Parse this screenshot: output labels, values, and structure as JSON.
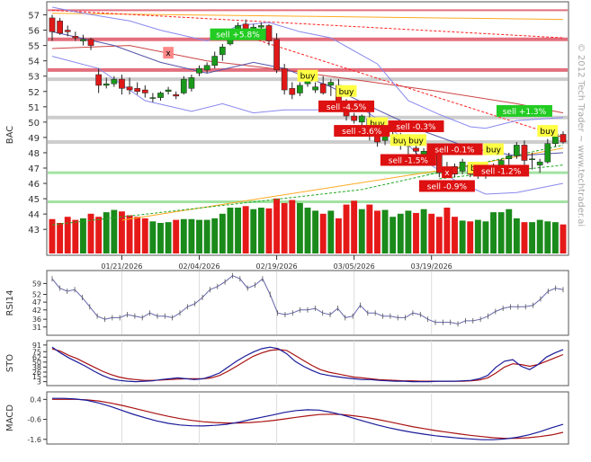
{
  "chart_data": {
    "type": "candlestick",
    "symbol": "BAC",
    "watermark": "© 2012 Tech Trader ~ www.techtrader.ai",
    "x_ticks": [
      "01/21/2026",
      "02/04/2026",
      "02/19/2026",
      "03/05/2026",
      "03/19/2026"
    ],
    "price_axis": {
      "ticks": [
        43,
        44,
        45,
        46,
        47,
        48,
        49,
        50,
        51,
        52,
        53,
        54,
        55,
        56,
        57
      ],
      "ylim": [
        42.6,
        57.5
      ]
    },
    "candles": [
      {
        "o": 56.8,
        "h": 57.0,
        "l": 55.3,
        "c": 55.9
      },
      {
        "o": 56.6,
        "h": 56.8,
        "l": 55.7,
        "c": 55.8
      },
      {
        "o": 56.0,
        "h": 56.3,
        "l": 55.6,
        "c": 55.9
      },
      {
        "o": 55.6,
        "h": 55.9,
        "l": 55.3,
        "c": 55.5
      },
      {
        "o": 55.3,
        "h": 55.7,
        "l": 55.0,
        "c": 55.4
      },
      {
        "o": 55.4,
        "h": 55.5,
        "l": 54.7,
        "c": 55.0
      },
      {
        "o": 53.1,
        "h": 53.5,
        "l": 51.9,
        "c": 52.4
      },
      {
        "o": 52.4,
        "h": 52.9,
        "l": 52.2,
        "c": 52.5
      },
      {
        "o": 52.5,
        "h": 53.0,
        "l": 52.3,
        "c": 52.8
      },
      {
        "o": 52.8,
        "h": 53.1,
        "l": 51.8,
        "c": 52.2
      },
      {
        "o": 52.3,
        "h": 52.9,
        "l": 51.8,
        "c": 52.1
      },
      {
        "o": 52.2,
        "h": 52.6,
        "l": 51.8,
        "c": 52.0
      },
      {
        "o": 52.1,
        "h": 52.4,
        "l": 51.6,
        "c": 51.9
      },
      {
        "o": 51.6,
        "h": 51.9,
        "l": 51.3,
        "c": 51.6
      },
      {
        "o": 51.6,
        "h": 52.0,
        "l": 51.4,
        "c": 51.9
      },
      {
        "o": 52.0,
        "h": 52.3,
        "l": 51.8,
        "c": 52.1
      },
      {
        "o": 51.8,
        "h": 52.0,
        "l": 51.5,
        "c": 51.7
      },
      {
        "o": 51.9,
        "h": 53.0,
        "l": 51.8,
        "c": 52.8
      },
      {
        "o": 52.2,
        "h": 53.1,
        "l": 52.0,
        "c": 52.9
      },
      {
        "o": 53.2,
        "h": 53.7,
        "l": 53.0,
        "c": 53.5
      },
      {
        "o": 53.4,
        "h": 53.9,
        "l": 53.2,
        "c": 53.7
      },
      {
        "o": 53.7,
        "h": 54.6,
        "l": 53.5,
        "c": 54.3
      },
      {
        "o": 54.4,
        "h": 55.1,
        "l": 54.0,
        "c": 54.9
      },
      {
        "o": 55.1,
        "h": 56.0,
        "l": 55.0,
        "c": 55.8
      },
      {
        "o": 55.9,
        "h": 56.5,
        "l": 55.6,
        "c": 56.3
      },
      {
        "o": 56.4,
        "h": 56.7,
        "l": 55.9,
        "c": 56.1
      },
      {
        "o": 56.0,
        "h": 56.4,
        "l": 55.8,
        "c": 56.2
      },
      {
        "o": 56.2,
        "h": 56.5,
        "l": 55.9,
        "c": 56.3
      },
      {
        "o": 56.3,
        "h": 56.4,
        "l": 55.0,
        "c": 55.3
      },
      {
        "o": 55.4,
        "h": 55.8,
        "l": 53.2,
        "c": 53.4
      },
      {
        "o": 53.5,
        "h": 53.8,
        "l": 51.8,
        "c": 52.1
      },
      {
        "o": 52.2,
        "h": 52.6,
        "l": 51.5,
        "c": 51.8
      },
      {
        "o": 51.9,
        "h": 52.6,
        "l": 51.7,
        "c": 52.4
      },
      {
        "o": 52.5,
        "h": 52.9,
        "l": 52.3,
        "c": 52.8
      },
      {
        "o": 52.1,
        "h": 52.6,
        "l": 51.9,
        "c": 52.3
      },
      {
        "o": 52.5,
        "h": 53.0,
        "l": 51.8,
        "c": 51.9
      },
      {
        "o": 52.4,
        "h": 52.8,
        "l": 51.7,
        "c": 52.6
      },
      {
        "o": 52.4,
        "h": 52.8,
        "l": 51.0,
        "c": 51.2
      },
      {
        "o": 51.3,
        "h": 51.5,
        "l": 50.1,
        "c": 50.4
      },
      {
        "o": 50.4,
        "h": 50.6,
        "l": 49.9,
        "c": 50.1
      },
      {
        "o": 50.0,
        "h": 50.5,
        "l": 49.5,
        "c": 50.4
      },
      {
        "o": 50.2,
        "h": 50.8,
        "l": 48.8,
        "c": 49.1
      },
      {
        "o": 49.2,
        "h": 49.6,
        "l": 48.4,
        "c": 48.7
      },
      {
        "o": 48.8,
        "h": 49.6,
        "l": 48.5,
        "c": 49.4
      },
      {
        "o": 49.4,
        "h": 49.8,
        "l": 48.8,
        "c": 49.6
      },
      {
        "o": 48.6,
        "h": 49.3,
        "l": 48.2,
        "c": 48.6
      },
      {
        "o": 48.5,
        "h": 48.8,
        "l": 47.7,
        "c": 48.5
      },
      {
        "o": 48.3,
        "h": 48.7,
        "l": 47.4,
        "c": 48.1
      },
      {
        "o": 47.9,
        "h": 48.3,
        "l": 47.8,
        "c": 48.1
      },
      {
        "o": 48.1,
        "h": 48.3,
        "l": 47.8,
        "c": 48.0
      },
      {
        "o": 47.9,
        "h": 48.0,
        "l": 46.4,
        "c": 46.7
      },
      {
        "o": 47.0,
        "h": 47.4,
        "l": 46.5,
        "c": 46.9
      },
      {
        "o": 47.1,
        "h": 47.3,
        "l": 46.4,
        "c": 46.6
      },
      {
        "o": 46.8,
        "h": 47.6,
        "l": 46.6,
        "c": 47.4
      },
      {
        "o": 47.2,
        "h": 47.3,
        "l": 46.4,
        "c": 46.6
      },
      {
        "o": 46.5,
        "h": 46.9,
        "l": 46.3,
        "c": 46.7
      },
      {
        "o": 46.6,
        "h": 47.2,
        "l": 46.3,
        "c": 47.0
      },
      {
        "o": 46.9,
        "h": 47.3,
        "l": 46.5,
        "c": 47.0
      },
      {
        "o": 47.1,
        "h": 47.6,
        "l": 46.7,
        "c": 47.5
      },
      {
        "o": 47.6,
        "h": 48.0,
        "l": 47.2,
        "c": 47.8
      },
      {
        "o": 47.8,
        "h": 48.7,
        "l": 47.6,
        "c": 48.5
      },
      {
        "o": 48.5,
        "h": 48.8,
        "l": 47.2,
        "c": 47.5
      },
      {
        "o": 47.6,
        "h": 48.0,
        "l": 46.9,
        "c": 47.6
      },
      {
        "o": 47.2,
        "h": 47.6,
        "l": 46.7,
        "c": 47.4
      },
      {
        "o": 47.4,
        "h": 48.9,
        "l": 47.3,
        "c": 48.6
      },
      {
        "o": 48.6,
        "h": 49.5,
        "l": 48.4,
        "c": 49.2
      },
      {
        "o": 49.2,
        "h": 49.4,
        "l": 48.6,
        "c": 48.7
      }
    ],
    "volume": [
      45,
      40,
      48,
      44,
      46,
      52,
      48,
      54,
      57,
      55,
      50,
      48,
      46,
      42,
      40,
      41,
      44,
      45,
      45,
      44,
      44,
      46,
      52,
      60,
      60,
      62,
      58,
      60,
      59,
      72,
      66,
      70,
      66,
      60,
      56,
      52,
      56,
      46,
      64,
      69,
      58,
      64,
      56,
      57,
      48,
      52,
      56,
      53,
      58,
      52,
      48,
      60,
      48,
      43,
      42,
      44,
      42,
      54,
      54,
      58,
      46,
      41,
      41,
      44,
      42,
      41,
      38
    ],
    "reference_lines": [
      {
        "y": 57.3,
        "color": "#e06070",
        "width": 2
      },
      {
        "y": 55.4,
        "color": "#e06070",
        "width": 4
      },
      {
        "y": 53.4,
        "color": "#e06070",
        "width": 4
      },
      {
        "y": 52.8,
        "color": "#c8c8c8",
        "width": 4
      },
      {
        "y": 50.3,
        "color": "#c8c8c8",
        "width": 4
      },
      {
        "y": 48.7,
        "color": "#c8c8c8",
        "width": 4
      },
      {
        "y": 46.7,
        "color": "#98e098",
        "width": 3
      },
      {
        "y": 44.8,
        "color": "#98e098",
        "width": 3
      }
    ],
    "overlay_lines": [
      {
        "name": "",
        "color": "#ffaa22",
        "dash": "",
        "points": [
          [
            0,
            57.1
          ],
          [
            66,
            56.7
          ]
        ]
      },
      {
        "name": "",
        "color": "#ff2020",
        "dash": "3,2",
        "points": [
          [
            0,
            57.3
          ],
          [
            66,
            55.5
          ]
        ]
      },
      {
        "name": "",
        "color": "#ff2020",
        "dash": "3,2",
        "points": [
          [
            25,
            55.6
          ],
          [
            66,
            49.0
          ]
        ]
      },
      {
        "name": "",
        "color": "#ffaa22",
        "dash": "",
        "points": [
          [
            9,
            43.6
          ],
          [
            52,
            47.0
          ],
          [
            66,
            48.3
          ]
        ]
      },
      {
        "name": "",
        "color": "#20aa20",
        "dash": "3,2",
        "points": [
          [
            0,
            43.3
          ],
          [
            40,
            45.6
          ],
          [
            66,
            48.5
          ]
        ]
      },
      {
        "name": "",
        "color": "#20aa20",
        "dash": "3,2",
        "points": [
          [
            50,
            46.3
          ],
          [
            66,
            47.2
          ]
        ]
      },
      {
        "name": "",
        "color": "#cc4444",
        "dash": "",
        "points": [
          [
            0,
            54.8
          ],
          [
            10,
            55.0
          ],
          [
            20,
            54.0
          ],
          [
            30,
            53.4
          ],
          [
            40,
            52.7
          ],
          [
            50,
            52.0
          ],
          [
            60,
            51.2
          ],
          [
            66,
            50.6
          ]
        ]
      },
      {
        "name": "",
        "color": "#5555aa",
        "dash": "",
        "points": [
          [
            0,
            55.9
          ],
          [
            8,
            55.0
          ],
          [
            14,
            53.9
          ],
          [
            20,
            53.2
          ],
          [
            26,
            53.9
          ],
          [
            30,
            53.5
          ],
          [
            36,
            52.3
          ],
          [
            42,
            50.8
          ],
          [
            48,
            49.4
          ],
          [
            54,
            48.3
          ],
          [
            60,
            47.8
          ],
          [
            66,
            48.0
          ]
        ]
      },
      {
        "name": "",
        "color": "#8888ee",
        "dash": "",
        "points": [
          [
            0,
            57.5
          ],
          [
            4,
            57.1
          ],
          [
            10,
            56.6
          ],
          [
            14,
            56.0
          ],
          [
            20,
            55.3
          ],
          [
            24,
            56.3
          ],
          [
            28,
            56.5
          ],
          [
            32,
            55.9
          ],
          [
            36,
            55.5
          ],
          [
            42,
            53.8
          ],
          [
            46,
            51.4
          ],
          [
            50,
            50.5
          ],
          [
            54,
            49.7
          ],
          [
            56,
            49.6
          ],
          [
            60,
            50.1
          ],
          [
            66,
            50.3
          ]
        ]
      },
      {
        "name": "",
        "color": "#8888ee",
        "dash": "",
        "points": [
          [
            0,
            54.3
          ],
          [
            6,
            53.5
          ],
          [
            12,
            51.4
          ],
          [
            18,
            50.7
          ],
          [
            22,
            51.2
          ],
          [
            26,
            50.6
          ],
          [
            30,
            50.8
          ],
          [
            34,
            50.8
          ],
          [
            40,
            50.9
          ],
          [
            44,
            49.5
          ],
          [
            48,
            47.5
          ],
          [
            52,
            46.2
          ],
          [
            56,
            45.3
          ],
          [
            60,
            45.4
          ],
          [
            66,
            46.0
          ]
        ]
      }
    ],
    "annotations": [
      {
        "text": "sell +5.8%",
        "i": 24,
        "y": 55.7,
        "bg": "#22cc22",
        "fg": "#ffffff"
      },
      {
        "text": "buy",
        "i": 33,
        "y": 53.0,
        "bg": "#ffff44",
        "fg": "#000000"
      },
      {
        "text": "buy",
        "i": 38,
        "y": 52.0,
        "bg": "#ffff44",
        "fg": "#000000"
      },
      {
        "text": "sell -4.5%",
        "i": 38,
        "y": 51.0,
        "bg": "#dd1111",
        "fg": "#ffffff"
      },
      {
        "text": "buy",
        "i": 42,
        "y": 49.9,
        "bg": "#ffff44",
        "fg": "#000000"
      },
      {
        "text": "sell -3.6%",
        "i": 40,
        "y": 49.4,
        "bg": "#dd1111",
        "fg": "#ffffff"
      },
      {
        "text": "sell -0.3%",
        "i": 47,
        "y": 49.7,
        "bg": "#dd1111",
        "fg": "#ffffff"
      },
      {
        "text": "buy",
        "i": 45,
        "y": 48.8,
        "bg": "#ffff44",
        "fg": "#000000"
      },
      {
        "text": "buy",
        "i": 47,
        "y": 48.8,
        "bg": "#ffff44",
        "fg": "#000000"
      },
      {
        "text": "sell -1.5%",
        "i": 46,
        "y": 47.5,
        "bg": "#dd1111",
        "fg": "#ffffff"
      },
      {
        "text": "sell -0.1%",
        "i": 52,
        "y": 48.2,
        "bg": "#dd1111",
        "fg": "#ffffff"
      },
      {
        "text": "buy",
        "i": 55,
        "y": 47.0,
        "bg": "#ffff44",
        "fg": "#000000"
      },
      {
        "text": "buy",
        "i": 57,
        "y": 48.2,
        "bg": "#ffff44",
        "fg": "#000000"
      },
      {
        "text": "sell -1.2%",
        "i": 58,
        "y": 46.8,
        "bg": "#dd1111",
        "fg": "#ffffff"
      },
      {
        "text": "sell -0.9%",
        "i": 51,
        "y": 45.8,
        "bg": "#dd1111",
        "fg": "#ffffff"
      },
      {
        "text": "sell +1.3%",
        "i": 61,
        "y": 50.7,
        "bg": "#22cc22",
        "fg": "#ffffff"
      },
      {
        "text": "buy",
        "i": 64,
        "y": 49.4,
        "bg": "#ffff44",
        "fg": "#000000"
      },
      {
        "text": "x",
        "i": 15,
        "y": 54.5,
        "bg": "#ff8888",
        "fg": "#000000"
      },
      {
        "text": "x",
        "i": 51,
        "y": 46.7,
        "bg": "#dd1111",
        "fg": "#ffffff"
      }
    ],
    "rsi": {
      "label": "RSI14",
      "ticks": [
        31,
        36,
        42,
        47,
        52,
        59
      ],
      "ylim": [
        28,
        65
      ],
      "values": [
        62,
        56,
        54,
        55,
        50,
        44,
        38,
        36,
        37,
        37,
        39,
        38,
        37,
        40,
        38,
        38,
        37,
        40,
        44,
        46,
        50,
        55,
        57,
        60,
        64,
        62,
        56,
        58,
        62,
        52,
        40,
        39,
        40,
        42,
        42,
        43,
        40,
        39,
        43,
        37,
        38,
        45,
        40,
        40,
        38,
        38,
        37,
        37,
        40,
        39,
        36,
        34,
        34,
        34,
        33,
        35,
        35,
        36,
        38,
        41,
        43,
        44,
        44,
        44,
        45,
        49,
        54,
        56,
        55
      ]
    },
    "sto": {
      "label": "STO",
      "ticks": [
        3,
        15,
        26,
        38,
        50,
        62,
        75,
        91
      ],
      "ylim": [
        0,
        95
      ],
      "k": [
        86,
        72,
        60,
        50,
        40,
        28,
        18,
        10,
        6,
        4,
        3,
        4,
        5,
        8,
        10,
        12,
        10,
        8,
        10,
        16,
        24,
        38,
        52,
        64,
        74,
        82,
        86,
        82,
        70,
        52,
        40,
        30,
        22,
        18,
        15,
        12,
        10,
        8,
        8,
        6,
        5,
        4,
        4,
        3,
        3,
        3,
        4,
        4,
        4,
        5,
        6,
        10,
        18,
        38,
        52,
        56,
        40,
        32,
        44,
        62,
        72,
        80
      ],
      "d": [
        82,
        76,
        66,
        58,
        48,
        38,
        28,
        20,
        14,
        10,
        8,
        6,
        6,
        7,
        8,
        9,
        10,
        10,
        10,
        12,
        18,
        28,
        40,
        52,
        64,
        72,
        78,
        80,
        78,
        66,
        54,
        42,
        32,
        26,
        22,
        18,
        14,
        12,
        10,
        8,
        7,
        6,
        5,
        5,
        4,
        4,
        4,
        4,
        4,
        4,
        5,
        7,
        12,
        24,
        38,
        46,
        44,
        40,
        44,
        52,
        60,
        68
      ]
    },
    "macd": {
      "label": "MACD",
      "ticks": [
        0.4,
        -0.6,
        -1.6
      ],
      "ylim": [
        -1.7,
        0.55
      ],
      "macd": [
        0.45,
        0.45,
        0.42,
        0.35,
        0.22,
        0.05,
        -0.15,
        -0.35,
        -0.52,
        -0.68,
        -0.8,
        -0.88,
        -0.92,
        -0.93,
        -0.9,
        -0.85,
        -0.75,
        -0.62,
        -0.5,
        -0.38,
        -0.25,
        -0.16,
        -0.12,
        -0.14,
        -0.24,
        -0.38,
        -0.55,
        -0.72,
        -0.88,
        -1.02,
        -1.14,
        -1.25,
        -1.34,
        -1.42,
        -1.48,
        -1.54,
        -1.58,
        -1.62,
        -1.62,
        -1.58,
        -1.5,
        -1.38,
        -1.22,
        -1.02,
        -0.85
      ],
      "signal": [
        0.4,
        0.4,
        0.4,
        0.38,
        0.32,
        0.22,
        0.1,
        -0.04,
        -0.18,
        -0.32,
        -0.45,
        -0.56,
        -0.65,
        -0.72,
        -0.76,
        -0.78,
        -0.78,
        -0.76,
        -0.72,
        -0.66,
        -0.58,
        -0.5,
        -0.42,
        -0.36,
        -0.34,
        -0.36,
        -0.42,
        -0.5,
        -0.6,
        -0.72,
        -0.84,
        -0.96,
        -1.06,
        -1.16,
        -1.24,
        -1.32,
        -1.4,
        -1.46,
        -1.52,
        -1.55,
        -1.55,
        -1.52,
        -1.46,
        -1.38,
        -1.25
      ]
    }
  }
}
